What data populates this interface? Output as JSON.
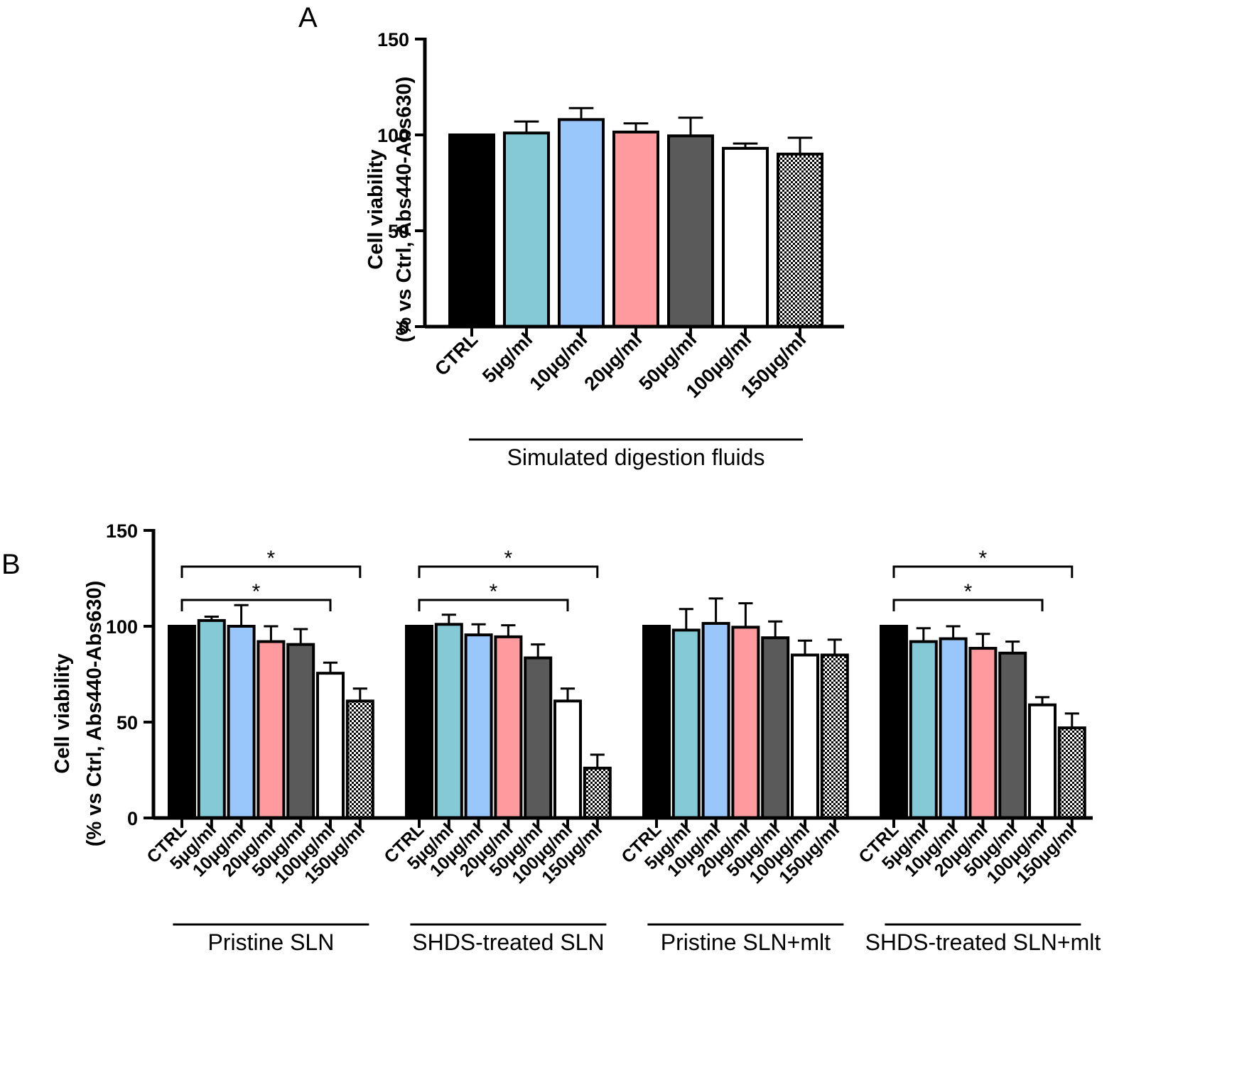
{
  "colors": {
    "CTRL": "#000000",
    "5": "#85c8d6",
    "10": "#99c6fb",
    "20": "#ff9b9e",
    "50": "#5a5a5a",
    "100": "#ffffff",
    "150": "checker"
  },
  "chart_data": [
    {
      "panel": "A",
      "type": "bar",
      "ylabel_line1": "Cell viability",
      "ylabel_line2": "(% vs Ctrl, Abs440-Abs630)",
      "ylim": [
        0,
        150
      ],
      "yticks": [
        0,
        50,
        100,
        150
      ],
      "categories": [
        "CTRL",
        "5µg/ml",
        "10µg/ml",
        "20µg/ml",
        "50µg/ml",
        "100µg/ml",
        "150µg/ml"
      ],
      "groups": [
        {
          "label": "Simulated digestion fluids",
          "values": [
            100,
            101,
            108,
            101.5,
            99.5,
            93,
            90
          ],
          "errors": [
            0,
            6,
            6,
            4.5,
            9.5,
            2.5,
            8.5
          ],
          "significance": []
        }
      ]
    },
    {
      "panel": "B",
      "type": "bar",
      "ylabel_line1": "Cell viability",
      "ylabel_line2": "(% vs Ctrl, Abs440-Abs630)",
      "ylim": [
        0,
        150
      ],
      "yticks": [
        0,
        50,
        100,
        150
      ],
      "categories": [
        "CTRL",
        "5µg/ml",
        "10µg/ml",
        "20µg/ml",
        "50µg/ml",
        "100µg/ml",
        "150µg/ml"
      ],
      "groups": [
        {
          "label": "Pristine SLN",
          "values": [
            100,
            103,
            100,
            92,
            90.5,
            75.5,
            61
          ],
          "errors": [
            0,
            2,
            11,
            8,
            8,
            5.5,
            6.5
          ],
          "significance": [
            {
              "from": 0,
              "to": 5,
              "label": "*"
            },
            {
              "from": 0,
              "to": 6,
              "label": "*"
            }
          ]
        },
        {
          "label": "SHDS-treated SLN",
          "values": [
            100,
            101,
            95.5,
            94.5,
            83.5,
            61,
            26
          ],
          "errors": [
            0,
            5,
            5.5,
            6,
            7,
            6.5,
            7
          ],
          "significance": [
            {
              "from": 0,
              "to": 5,
              "label": "*"
            },
            {
              "from": 0,
              "to": 6,
              "label": "*"
            }
          ]
        },
        {
          "label": "Pristine SLN+mlt",
          "values": [
            100,
            98,
            101.5,
            99.5,
            94,
            85,
            85
          ],
          "errors": [
            0,
            11,
            13,
            12.5,
            8.5,
            7.5,
            8
          ],
          "significance": []
        },
        {
          "label": "SHDS-treated SLN+mlt",
          "values": [
            100,
            92,
            93.5,
            88.5,
            86,
            59,
            47
          ],
          "errors": [
            0,
            7,
            6.5,
            7.5,
            6,
            4,
            7.5
          ],
          "significance": [
            {
              "from": 0,
              "to": 5,
              "label": "*"
            },
            {
              "from": 0,
              "to": 6,
              "label": "*"
            }
          ]
        }
      ]
    }
  ]
}
